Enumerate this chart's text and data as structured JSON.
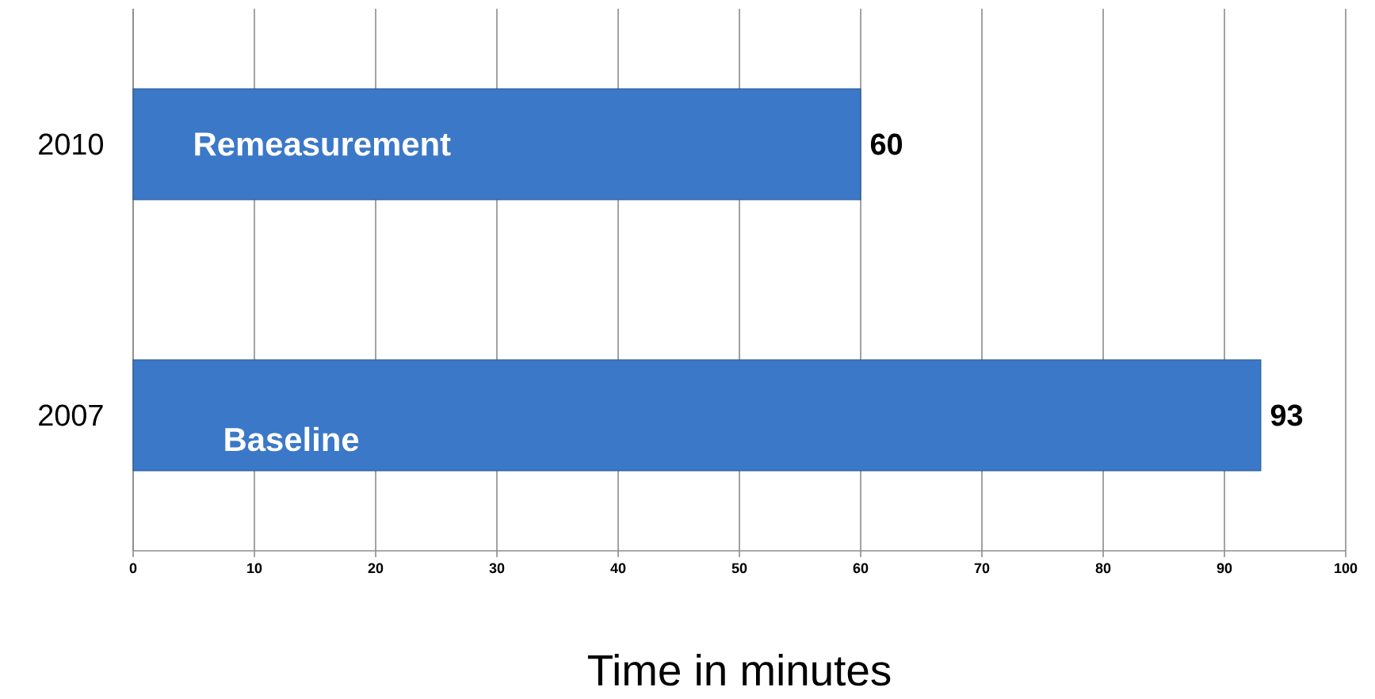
{
  "chart_data": {
    "type": "bar",
    "orientation": "horizontal",
    "categories": [
      "2010",
      "2007"
    ],
    "values": [
      60,
      93
    ],
    "color": "#3b78c8",
    "data_labels": true,
    "xlabel": "Time in minutes",
    "xlim": [
      0,
      100
    ],
    "xticks": [
      0,
      10,
      20,
      30,
      40,
      50,
      60,
      70,
      80,
      90,
      100
    ],
    "grid": "x",
    "annotations": [
      "Remeasurement",
      "Baseline"
    ]
  }
}
